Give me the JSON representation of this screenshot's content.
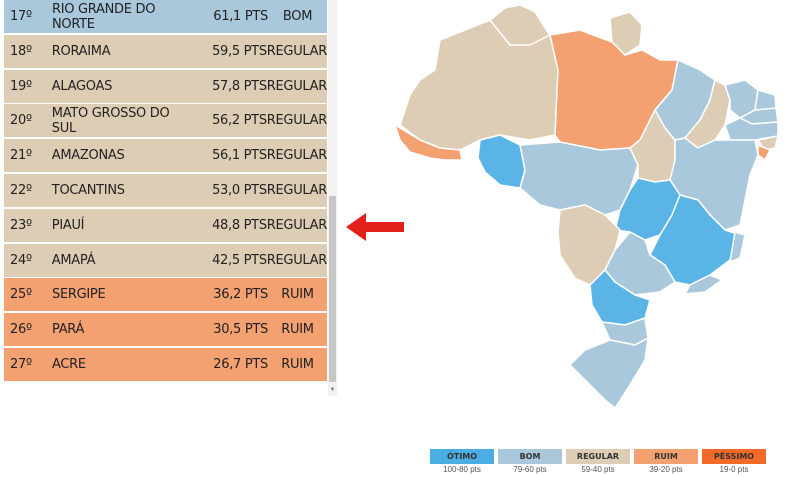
{
  "ranking": [
    {
      "rank": "17º",
      "state": "RIO GRANDE DO NORTE",
      "score": "61,1 PTS",
      "class": "BOM",
      "tier": "bom"
    },
    {
      "rank": "18º",
      "state": "RORAIMA",
      "score": "59,5 PTS",
      "class": "REGULAR",
      "tier": "regular"
    },
    {
      "rank": "19º",
      "state": "ALAGOAS",
      "score": "57,8 PTS",
      "class": "REGULAR",
      "tier": "regular"
    },
    {
      "rank": "20º",
      "state": "MATO GROSSO DO SUL",
      "score": "56,2 PTS",
      "class": "REGULAR",
      "tier": "regular"
    },
    {
      "rank": "21º",
      "state": "AMAZONAS",
      "score": "56,1 PTS",
      "class": "REGULAR",
      "tier": "regular"
    },
    {
      "rank": "22º",
      "state": "TOCANTINS",
      "score": "53,0 PTS",
      "class": "REGULAR",
      "tier": "regular"
    },
    {
      "rank": "23º",
      "state": "PIAUÍ",
      "score": "48,8 PTS",
      "class": "REGULAR",
      "tier": "regular"
    },
    {
      "rank": "24º",
      "state": "AMAPÁ",
      "score": "42,5 PTS",
      "class": "REGULAR",
      "tier": "regular"
    },
    {
      "rank": "25º",
      "state": "SERGIPE",
      "score": "36,2 PTS",
      "class": "RUIM",
      "tier": "ruim"
    },
    {
      "rank": "26º",
      "state": "PARÁ",
      "score": "30,5 PTS",
      "class": "RUIM",
      "tier": "ruim"
    },
    {
      "rank": "27º",
      "state": "ACRE",
      "score": "26,7 PTS",
      "class": "RUIM",
      "tier": "ruim"
    }
  ],
  "legend": [
    {
      "label": "ÓTIMO",
      "range": "100-80 pts",
      "color": "#4aade4"
    },
    {
      "label": "BOM",
      "range": "79-60 pts",
      "color": "#a9c8dc"
    },
    {
      "label": "REGULAR",
      "range": "59-40 pts",
      "color": "#ddcdb5"
    },
    {
      "label": "RUIM",
      "range": "39-20 pts",
      "color": "#f4a171"
    },
    {
      "label": "PÉSSIMO",
      "range": "19-0 pts",
      "color": "#f26a2a"
    }
  ],
  "colors": {
    "otimo": "#5bb4e6",
    "bom": "#a9c8dc",
    "regular": "#ddcdb5",
    "ruim": "#f4a171",
    "pointer": "#e3201b"
  },
  "icons": {
    "pointer": "left-arrow-icon",
    "scroll_up": "scroll-up-icon",
    "scroll_down": "scroll-down-icon"
  }
}
